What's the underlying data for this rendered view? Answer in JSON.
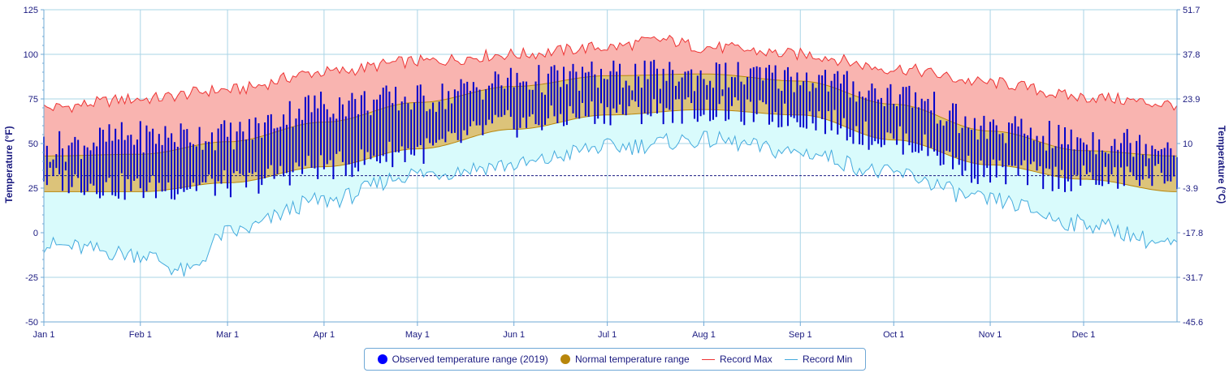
{
  "chart_data": {
    "type": "area",
    "title": "",
    "year": 2019,
    "y_left": {
      "label": "Temperature (°F)",
      "min": -50,
      "max": 125,
      "ticks": [
        125,
        100,
        75,
        50,
        25,
        0,
        -25,
        -50
      ]
    },
    "y_right": {
      "label": "Temperature (°C)",
      "ticks": [
        "51.7",
        "37.8",
        "23.9",
        "10",
        "-3.9",
        "-17.8",
        "-31.7",
        "-45.6"
      ]
    },
    "x_months": [
      {
        "label": "Jan 1",
        "day": 1
      },
      {
        "label": "Feb 1",
        "day": 32
      },
      {
        "label": "Mar 1",
        "day": 60
      },
      {
        "label": "Apr 1",
        "day": 91
      },
      {
        "label": "May 1",
        "day": 121
      },
      {
        "label": "Jun 1",
        "day": 152
      },
      {
        "label": "Jul 1",
        "day": 182
      },
      {
        "label": "Aug 1",
        "day": 213
      },
      {
        "label": "Sep 1",
        "day": 244
      },
      {
        "label": "Oct 1",
        "day": 274
      },
      {
        "label": "Nov 1",
        "day": 305
      },
      {
        "label": "Dec 1",
        "day": 335
      }
    ],
    "days_in_year": 365,
    "freezing_line_f": 32,
    "grid": true,
    "legend_position": "bottom",
    "series": [
      {
        "name": "Observed temperature range (2019)",
        "color": "#0000cc",
        "anchors": [
          {
            "day": 1,
            "lo": 30,
            "hi": 48
          },
          {
            "day": 32,
            "lo": 25,
            "hi": 54
          },
          {
            "day": 60,
            "lo": 27,
            "hi": 55
          },
          {
            "day": 91,
            "lo": 37,
            "hi": 72
          },
          {
            "day": 121,
            "lo": 46,
            "hi": 75
          },
          {
            "day": 152,
            "lo": 61,
            "hi": 85
          },
          {
            "day": 182,
            "lo": 68,
            "hi": 88
          },
          {
            "day": 213,
            "lo": 69,
            "hi": 88
          },
          {
            "day": 244,
            "lo": 65,
            "hi": 87
          },
          {
            "day": 274,
            "lo": 52,
            "hi": 78
          },
          {
            "day": 305,
            "lo": 34,
            "hi": 58
          },
          {
            "day": 335,
            "lo": 30,
            "hi": 52
          },
          {
            "day": 365,
            "lo": 32,
            "hi": 50
          }
        ]
      },
      {
        "name": "Normal temperature range",
        "color": "#b8860b",
        "anchors": [
          {
            "day": 1,
            "lo": 23,
            "hi": 43
          },
          {
            "day": 32,
            "lo": 23,
            "hi": 44
          },
          {
            "day": 60,
            "lo": 28,
            "hi": 51
          },
          {
            "day": 91,
            "lo": 37,
            "hi": 62
          },
          {
            "day": 121,
            "lo": 47,
            "hi": 73
          },
          {
            "day": 152,
            "lo": 58,
            "hi": 82
          },
          {
            "day": 182,
            "lo": 66,
            "hi": 88
          },
          {
            "day": 213,
            "lo": 69,
            "hi": 89
          },
          {
            "day": 244,
            "lo": 66,
            "hi": 85
          },
          {
            "day": 274,
            "lo": 52,
            "hi": 72
          },
          {
            "day": 305,
            "lo": 38,
            "hi": 57
          },
          {
            "day": 335,
            "lo": 30,
            "hi": 46
          },
          {
            "day": 365,
            "lo": 23,
            "hi": 43
          }
        ]
      },
      {
        "name": "Record Max",
        "color": "#ee3333",
        "fill": "#f9b4b0",
        "anchors": [
          {
            "day": 1,
            "v": 70
          },
          {
            "day": 32,
            "v": 75
          },
          {
            "day": 60,
            "v": 80
          },
          {
            "day": 91,
            "v": 90
          },
          {
            "day": 121,
            "v": 96
          },
          {
            "day": 152,
            "v": 100
          },
          {
            "day": 182,
            "v": 104
          },
          {
            "day": 200,
            "v": 108
          },
          {
            "day": 213,
            "v": 104
          },
          {
            "day": 244,
            "v": 100
          },
          {
            "day": 274,
            "v": 92
          },
          {
            "day": 305,
            "v": 84
          },
          {
            "day": 335,
            "v": 76
          },
          {
            "day": 365,
            "v": 72
          }
        ]
      },
      {
        "name": "Record Min",
        "color": "#44aadd",
        "fill": "#d9fbfc",
        "anchors": [
          {
            "day": 1,
            "v": -7
          },
          {
            "day": 32,
            "v": -12
          },
          {
            "day": 47,
            "v": -22
          },
          {
            "day": 60,
            "v": 0
          },
          {
            "day": 91,
            "v": 18
          },
          {
            "day": 121,
            "v": 33
          },
          {
            "day": 152,
            "v": 38
          },
          {
            "day": 182,
            "v": 48
          },
          {
            "day": 213,
            "v": 52
          },
          {
            "day": 244,
            "v": 45
          },
          {
            "day": 274,
            "v": 33
          },
          {
            "day": 305,
            "v": 18
          },
          {
            "day": 335,
            "v": 5
          },
          {
            "day": 365,
            "v": -7
          }
        ]
      }
    ]
  },
  "legend": {
    "observed": "Observed temperature range (2019)",
    "normal": "Normal temperature range",
    "record_max": "Record Max",
    "record_min": "Record Min"
  }
}
